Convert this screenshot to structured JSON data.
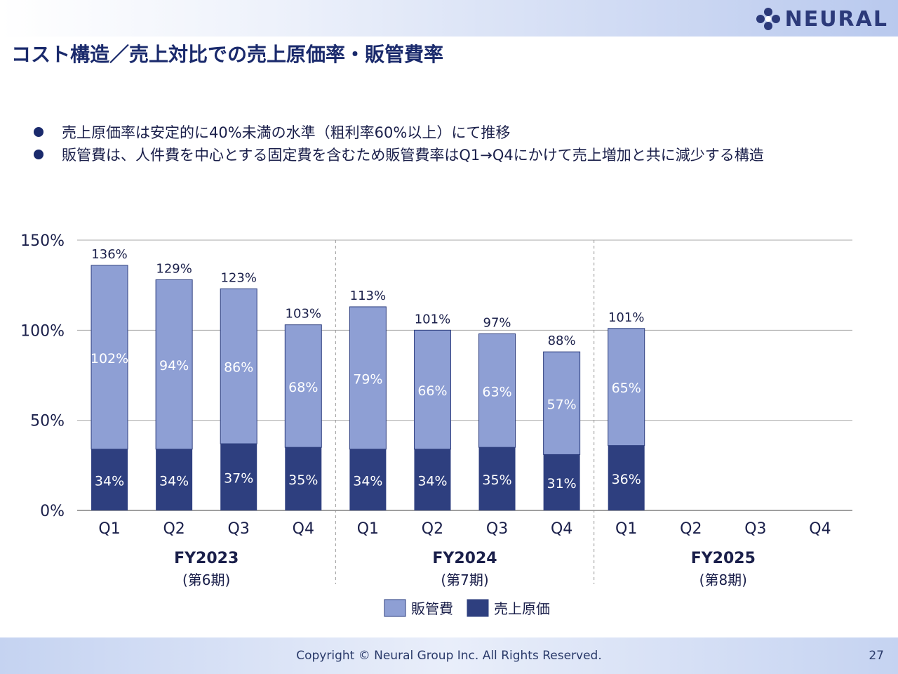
{
  "header": {
    "logo_text": "NEURAL",
    "title": "コスト構造／売上対比での売上原価率・販管費率"
  },
  "bullets": [
    "売上原価率は安定的に40%未満の水準（粗利率60%以上）にて推移",
    "販管費は、人件費を中心とする固定費を含むため販管費率はQ1→Q4にかけて売上増加と共に減少する構造"
  ],
  "chart_data": {
    "type": "bar",
    "stacked": true,
    "categories": [
      "Q1",
      "Q2",
      "Q3",
      "Q4",
      "Q1",
      "Q2",
      "Q3",
      "Q4",
      "Q1",
      "Q2",
      "Q3",
      "Q4"
    ],
    "groups": [
      {
        "name": "FY2023",
        "sub": "(第6期)",
        "from": 0,
        "to": 3
      },
      {
        "name": "FY2024",
        "sub": "(第7期)",
        "from": 4,
        "to": 7
      },
      {
        "name": "FY2025",
        "sub": "(第8期)",
        "from": 8,
        "to": 11
      }
    ],
    "series": [
      {
        "name": "売上原価",
        "color": "#2e3f7f",
        "values": [
          34,
          34,
          37,
          35,
          34,
          34,
          35,
          31,
          36,
          null,
          null,
          null
        ],
        "labels": [
          "34%",
          "34%",
          "37%",
          "35%",
          "34%",
          "34%",
          "35%",
          "31%",
          "36%",
          "",
          "",
          ""
        ]
      },
      {
        "name": "販管費",
        "color": "#8e9fd4",
        "values": [
          102,
          94,
          86,
          68,
          79,
          66,
          63,
          57,
          65,
          null,
          null,
          null
        ],
        "labels": [
          "102%",
          "94%",
          "86%",
          "68%",
          "79%",
          "66%",
          "63%",
          "57%",
          "65%",
          "",
          "",
          ""
        ]
      }
    ],
    "totals": [
      "136%",
      "129%",
      "123%",
      "103%",
      "113%",
      "101%",
      "97%",
      "88%",
      "101%",
      "",
      "",
      ""
    ],
    "y_ticks": [
      0,
      50,
      100,
      150
    ],
    "y_tick_labels": [
      "0%",
      "50%",
      "100%",
      "150%"
    ],
    "ylim": [
      0,
      150
    ],
    "legend": [
      {
        "name": "販管費",
        "color": "#8e9fd4"
      },
      {
        "name": "売上原価",
        "color": "#2e3f7f"
      }
    ],
    "legend_position": "bottom",
    "grid": true
  },
  "footer": {
    "copyright": "Copyright © Neural Group Inc. All Rights Reserved.",
    "page_number": "27"
  }
}
